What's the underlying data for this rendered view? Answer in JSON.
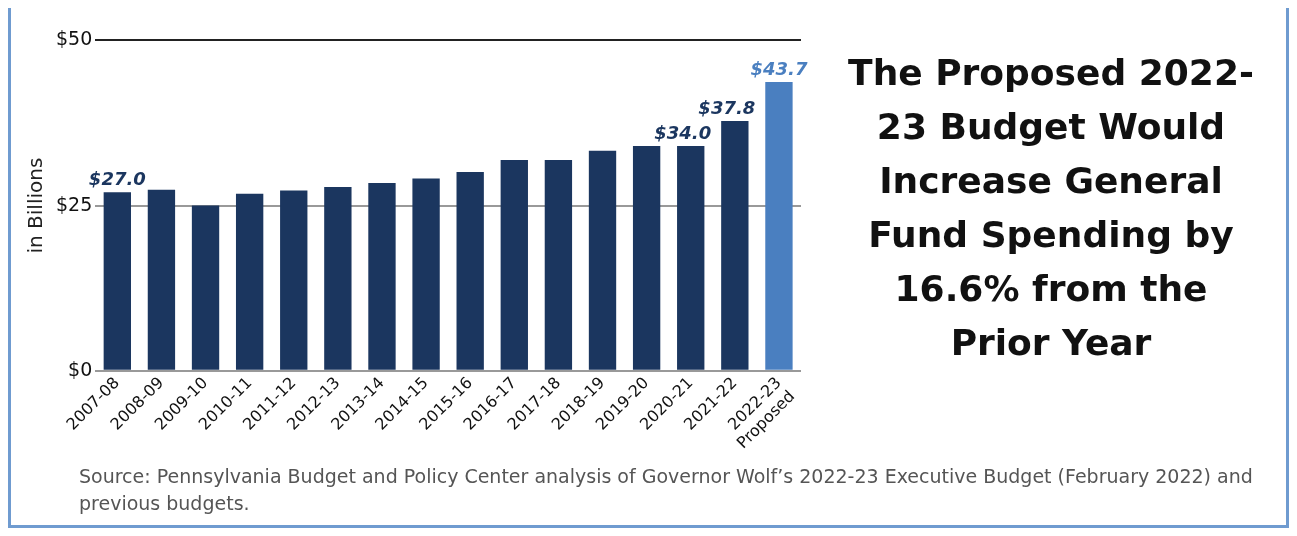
{
  "chart_data": {
    "type": "bar",
    "title": "The Proposed 2022-23 Budget Would Increase General Fund Spending by 16.6% from the Prior Year",
    "ylabel": "in Billions",
    "categories": [
      "2007-08",
      "2008-09",
      "2009-10",
      "2010-11",
      "2011-12",
      "2012-13",
      "2013-14",
      "2014-15",
      "2015-16",
      "2016-17",
      "2017-18",
      "2018-19",
      "2019-20",
      "2020-21",
      "2021-22",
      "2022-23 Proposed"
    ],
    "values": [
      27.0,
      27.4,
      25.0,
      26.8,
      27.3,
      27.8,
      28.4,
      29.1,
      30.1,
      31.9,
      31.9,
      33.3,
      34.0,
      34.0,
      37.8,
      43.7
    ],
    "colors": [
      "#1b365f",
      "#1b365f",
      "#1b365f",
      "#1b365f",
      "#1b365f",
      "#1b365f",
      "#1b365f",
      "#1b365f",
      "#1b365f",
      "#1b365f",
      "#1b365f",
      "#1b365f",
      "#1b365f",
      "#1b365f",
      "#1b365f",
      "#4a7fc0"
    ],
    "value_labels": [
      "$27.0",
      null,
      null,
      null,
      null,
      null,
      null,
      null,
      null,
      null,
      null,
      null,
      null,
      "$34.0",
      "$37.8",
      "$43.7"
    ],
    "ylim": [
      0,
      50
    ],
    "yticks": [
      {
        "value": 0,
        "label": "$0"
      },
      {
        "value": 25,
        "label": "$25"
      },
      {
        "value": 50,
        "label": "$50"
      }
    ],
    "grid": "y",
    "legend": false,
    "annotations": [
      "Source: Pennsylvania Budget and Policy Center analysis of Governor Wolf’s 2022-23 Executive Budget (February 2022) and previous budgets."
    ]
  }
}
